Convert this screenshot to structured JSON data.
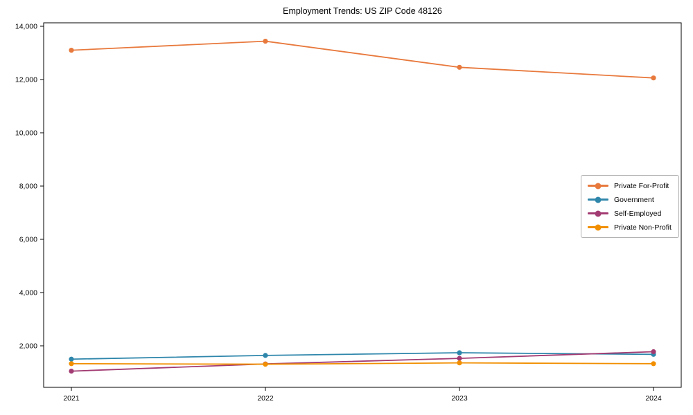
{
  "chart_data": {
    "type": "line",
    "title": "Employment Trends: US ZIP Code 48126",
    "xlabel": "",
    "ylabel": "",
    "categories": [
      "2021",
      "2022",
      "2023",
      "2024"
    ],
    "series": [
      {
        "name": "Private For-Profit",
        "color": "#E8793D",
        "values": [
          13100,
          13440,
          12460,
          12060
        ]
      },
      {
        "name": "Government",
        "color": "#2E86AB",
        "values": [
          1500,
          1640,
          1740,
          1680
        ]
      },
      {
        "name": "Self-Employed",
        "color": "#A23B72",
        "values": [
          1050,
          1320,
          1530,
          1780
        ]
      },
      {
        "name": "Private Non-Profit",
        "color": "#F18F01",
        "values": [
          1330,
          1310,
          1360,
          1330
        ]
      }
    ],
    "yticks": [
      2000,
      4000,
      6000,
      8000,
      10000,
      12000,
      14000
    ],
    "ytick_labels": [
      "2,000",
      "4,000",
      "6,000",
      "8,000",
      "10,000",
      "12,000",
      "14,000"
    ],
    "ylim": [
      442,
      14130
    ],
    "grid": false,
    "marker": "circle",
    "legend_position": "center-right",
    "axes_color": "#000000",
    "background": "#ffffff"
  }
}
